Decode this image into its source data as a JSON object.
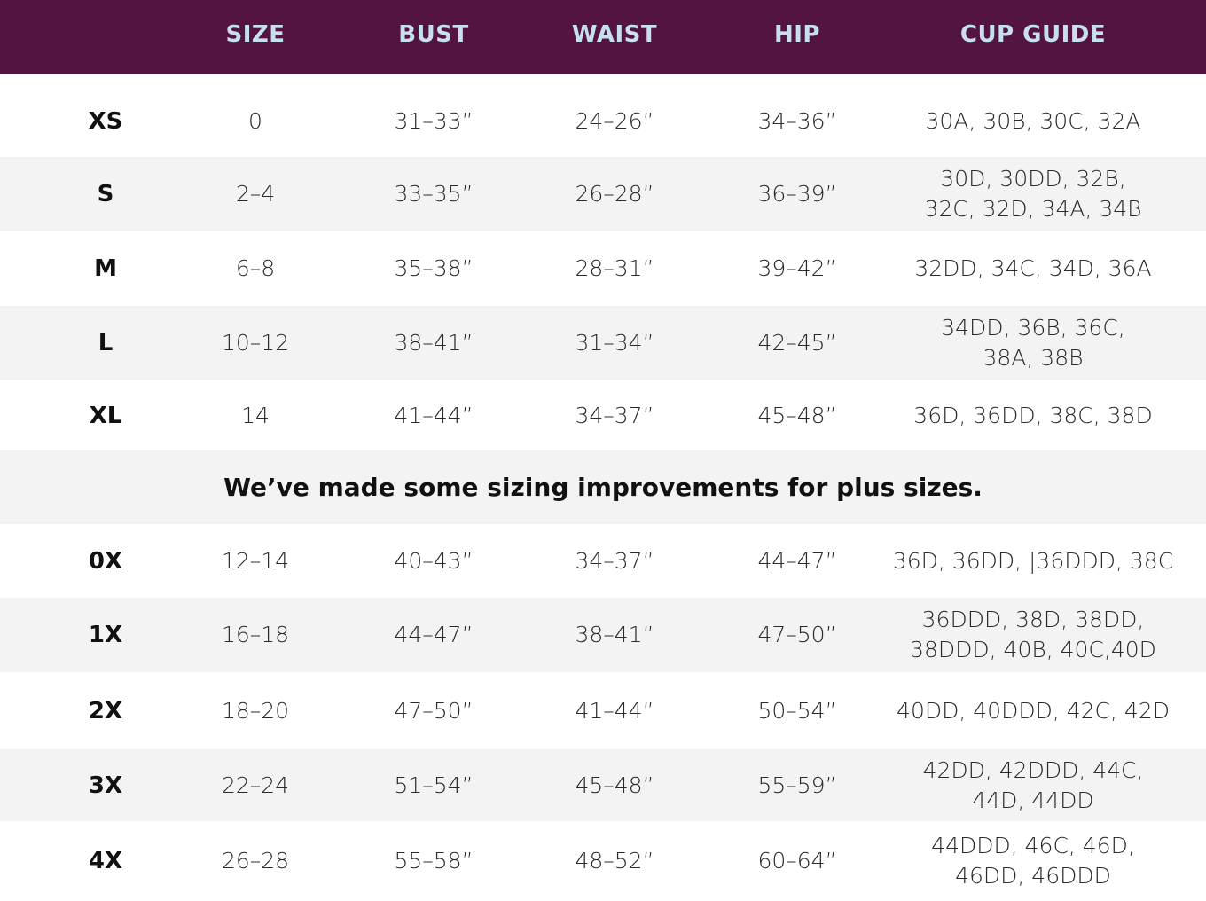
{
  "header": [
    "",
    "SIZE",
    "BUST",
    "WAIST",
    "HIP",
    "CUP GUIDE"
  ],
  "colors": {
    "header_bg": "#541442",
    "header_text": "#c7e0f0",
    "stripe": "#f3f3f3"
  },
  "rows_top": [
    {
      "label": "XS",
      "size": "0",
      "bust": "31–33”",
      "waist": "24–26”",
      "hip": "34–36”",
      "cup": [
        "30A, 30B, 30C, 32A"
      ]
    },
    {
      "label": "S",
      "size": "2–4",
      "bust": "33–35”",
      "waist": "26–28”",
      "hip": "36–39”",
      "cup": [
        "30D, 30DD, 32B,",
        "32C, 32D, 34A, 34B"
      ]
    },
    {
      "label": "M",
      "size": "6–8",
      "bust": "35–38”",
      "waist": "28–31”",
      "hip": "39–42”",
      "cup": [
        "32DD, 34C, 34D, 36A"
      ]
    },
    {
      "label": "L",
      "size": "10–12",
      "bust": "38–41”",
      "waist": "31–34”",
      "hip": "42–45”",
      "cup": [
        "34DD, 36B, 36C,",
        "38A, 38B"
      ]
    },
    {
      "label": "XL",
      "size": "14",
      "bust": "41–44”",
      "waist": "34–37”",
      "hip": "45–48”",
      "cup": [
        "36D, 36DD, 38C, 38D"
      ]
    }
  ],
  "note": "We’ve made some sizing improvements for plus sizes.",
  "rows_plus": [
    {
      "label": "0X",
      "size": "12–14",
      "bust": "40–43”",
      "waist": "34–37”",
      "hip": "44–47”",
      "cup": [
        "36D, 36DD, |36DDD, 38C"
      ]
    },
    {
      "label": "1X",
      "size": "16–18",
      "bust": "44–47”",
      "waist": "38–41”",
      "hip": "47–50”",
      "cup": [
        "36DDD, 38D, 38DD,",
        "38DDD, 40B, 40C,40D"
      ]
    },
    {
      "label": "2X",
      "size": "18–20",
      "bust": "47–50”",
      "waist": "41–44”",
      "hip": "50–54”",
      "cup": [
        "40DD, 40DDD, 42C, 42D"
      ]
    },
    {
      "label": "3X",
      "size": "22–24",
      "bust": "51–54”",
      "waist": "45–48”",
      "hip": "55–59”",
      "cup": [
        "42DD, 42DDD, 44C,",
        "44D, 44DD"
      ]
    },
    {
      "label": "4X",
      "size": "26–28",
      "bust": "55–58”",
      "waist": "48–52”",
      "hip": "60–64”",
      "cup": [
        "44DDD, 46C, 46D,",
        "46DD, 46DDD"
      ]
    }
  ]
}
